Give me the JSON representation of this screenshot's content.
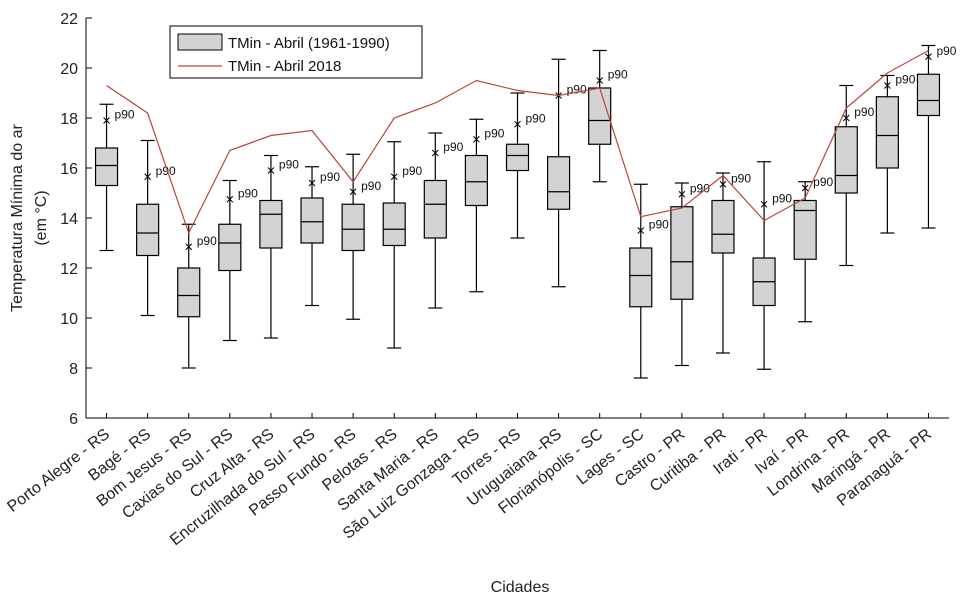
{
  "chart_data": {
    "type": "boxplot",
    "ylabel": "Temperatura Mínima do ar",
    "ylabel_unit": "(em °C)",
    "xlabel": "Cidades",
    "ylim": [
      6,
      22
    ],
    "yticks": [
      6,
      8,
      10,
      12,
      14,
      16,
      18,
      20,
      22
    ],
    "legend_placement": "top-left",
    "legend": {
      "box_label": "TMin - Abril (1961-1990)",
      "line_label": "TMin - Abril 2018"
    },
    "p90_text": "p90",
    "colors": {
      "box_fill": "#d3d3d3",
      "line": "#b5473b",
      "stroke": "#000000"
    },
    "categories": [
      "Porto Alegre - RS",
      "Bagé - RS",
      "Bom Jesus - RS",
      "Caxias do Sul - RS",
      "Cruz Alta - RS",
      "Encruzilhada do Sul - RS",
      "Passo Fundo - RS",
      "Pelotas - RS",
      "Santa Maria - RS",
      "São Luiz Gonzaga - RS",
      "Torres - RS",
      "Uruguaiana -RS",
      "Florianópolis - SC",
      "Lages - SC",
      "Castro - PR",
      "Curitiba - PR",
      "Irati - PR",
      "Ivaí - PR",
      "Londrina - PR",
      "Maringá - PR",
      "Paranaguá - PR"
    ],
    "boxes": [
      {
        "min": 12.7,
        "q1": 15.3,
        "median": 16.1,
        "q3": 16.8,
        "max": 18.55,
        "p90": 17.9
      },
      {
        "min": 10.1,
        "q1": 12.5,
        "median": 13.4,
        "q3": 14.55,
        "max": 17.1,
        "p90": 15.65
      },
      {
        "min": 8.0,
        "q1": 10.05,
        "median": 10.9,
        "q3": 12.0,
        "max": 13.75,
        "p90": 12.85
      },
      {
        "min": 9.1,
        "q1": 11.9,
        "median": 13.0,
        "q3": 13.75,
        "max": 15.5,
        "p90": 14.75
      },
      {
        "min": 9.2,
        "q1": 12.8,
        "median": 14.15,
        "q3": 14.7,
        "max": 16.5,
        "p90": 15.9
      },
      {
        "min": 10.5,
        "q1": 13.0,
        "median": 13.85,
        "q3": 14.8,
        "max": 16.05,
        "p90": 15.4
      },
      {
        "min": 9.95,
        "q1": 12.7,
        "median": 13.55,
        "q3": 14.55,
        "max": 16.55,
        "p90": 15.05
      },
      {
        "min": 8.8,
        "q1": 12.9,
        "median": 13.55,
        "q3": 14.6,
        "max": 17.05,
        "p90": 15.65
      },
      {
        "min": 10.4,
        "q1": 13.2,
        "median": 14.55,
        "q3": 15.5,
        "max": 17.4,
        "p90": 16.6
      },
      {
        "min": 11.05,
        "q1": 14.5,
        "median": 15.45,
        "q3": 16.5,
        "max": 17.95,
        "p90": 17.15
      },
      {
        "min": 13.2,
        "q1": 15.9,
        "median": 16.5,
        "q3": 16.95,
        "max": 19.0,
        "p90": 17.75
      },
      {
        "min": 11.25,
        "q1": 14.35,
        "median": 15.05,
        "q3": 16.45,
        "max": 20.35,
        "p90": 18.9
      },
      {
        "min": 15.45,
        "q1": 16.95,
        "median": 17.9,
        "q3": 19.2,
        "max": 20.7,
        "p90": 19.5
      },
      {
        "min": 7.6,
        "q1": 10.45,
        "median": 11.7,
        "q3": 12.8,
        "max": 15.35,
        "p90": 13.5
      },
      {
        "min": 8.1,
        "q1": 10.75,
        "median": 12.25,
        "q3": 14.45,
        "max": 15.4,
        "p90": 14.95
      },
      {
        "min": 8.6,
        "q1": 12.6,
        "median": 13.35,
        "q3": 14.7,
        "max": 15.8,
        "p90": 15.35
      },
      {
        "min": 7.95,
        "q1": 10.5,
        "median": 11.45,
        "q3": 12.4,
        "max": 16.25,
        "p90": 14.55
      },
      {
        "min": 9.85,
        "q1": 12.35,
        "median": 14.3,
        "q3": 14.7,
        "max": 15.45,
        "p90": 15.2
      },
      {
        "min": 12.1,
        "q1": 15.0,
        "median": 15.7,
        "q3": 17.65,
        "max": 19.3,
        "p90": 18.0
      },
      {
        "min": 13.4,
        "q1": 16.0,
        "median": 17.3,
        "q3": 18.85,
        "max": 19.7,
        "p90": 19.3
      },
      {
        "min": 13.6,
        "q1": 18.1,
        "median": 18.7,
        "q3": 19.75,
        "max": 20.9,
        "p90": 20.45
      }
    ],
    "series": [
      {
        "name": "TMin - Abril 2018",
        "values": [
          19.3,
          18.2,
          13.4,
          16.7,
          17.3,
          17.5,
          15.45,
          18.0,
          18.6,
          19.5,
          19.1,
          18.9,
          19.2,
          14.05,
          14.4,
          15.7,
          13.9,
          14.8,
          18.4,
          19.8,
          20.7
        ]
      }
    ]
  }
}
